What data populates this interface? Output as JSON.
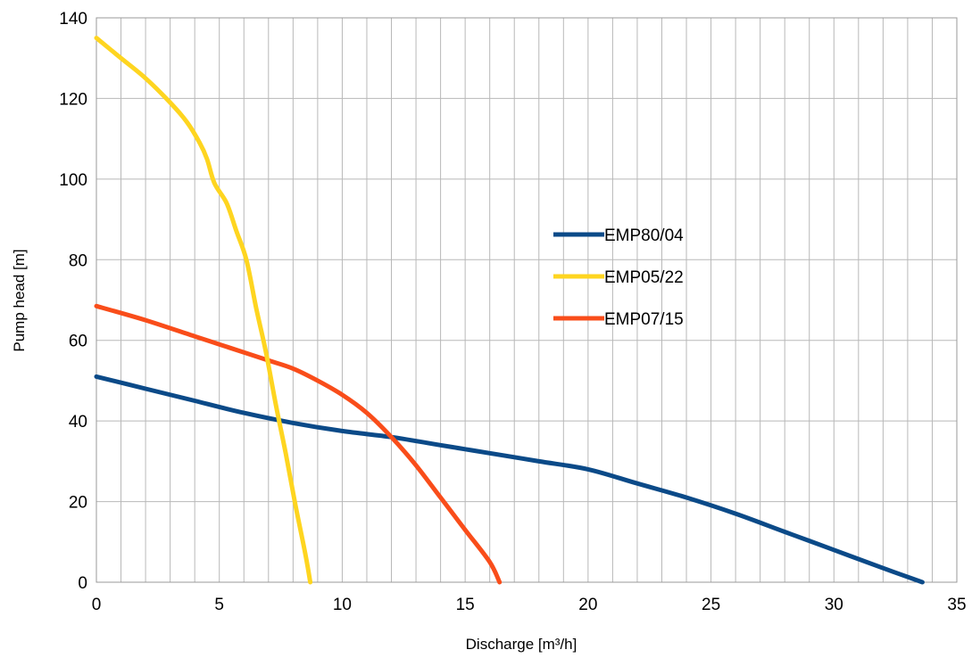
{
  "chart_data": {
    "type": "line",
    "title": "",
    "xlabel": "Discharge [m³/h]",
    "ylabel": "Pump head [m]",
    "xlim": [
      0,
      35
    ],
    "ylim": [
      0,
      140
    ],
    "x_ticks": [
      0,
      5,
      10,
      15,
      20,
      25,
      30,
      35
    ],
    "y_ticks": [
      0,
      20,
      40,
      60,
      80,
      100,
      120,
      140
    ],
    "x_tick_labels": [
      "0",
      "5",
      "10",
      "15",
      "20",
      "25",
      "30",
      "35"
    ],
    "y_tick_labels": [
      "0",
      "20",
      "40",
      "60",
      "80",
      "100",
      "120",
      "140"
    ],
    "x_minor_step": 1,
    "grid": true,
    "legend_position": "right-center",
    "series": [
      {
        "name": "EMP80/04",
        "color": "#0b4a88",
        "points": [
          [
            0,
            51
          ],
          [
            2,
            48
          ],
          [
            4,
            45
          ],
          [
            6,
            42
          ],
          [
            8,
            39.5
          ],
          [
            10,
            37.5
          ],
          [
            12,
            36
          ],
          [
            14,
            34
          ],
          [
            15,
            33
          ],
          [
            16,
            32
          ],
          [
            18,
            30
          ],
          [
            20,
            28
          ],
          [
            22,
            24.5
          ],
          [
            24,
            21
          ],
          [
            26,
            17
          ],
          [
            28,
            12.5
          ],
          [
            30,
            8
          ],
          [
            32,
            3.5
          ],
          [
            33.6,
            0
          ]
        ]
      },
      {
        "name": "EMP05/22",
        "color": "#fed520",
        "points": [
          [
            0,
            135
          ],
          [
            1,
            130
          ],
          [
            2,
            125
          ],
          [
            3,
            119
          ],
          [
            3.7,
            114
          ],
          [
            4.2,
            109
          ],
          [
            4.5,
            105
          ],
          [
            4.8,
            99
          ],
          [
            5.3,
            94
          ],
          [
            5.7,
            87
          ],
          [
            6.1,
            80
          ],
          [
            6.5,
            68
          ],
          [
            6.9,
            57
          ],
          [
            7.3,
            44
          ],
          [
            7.7,
            32
          ],
          [
            8.1,
            19
          ],
          [
            8.5,
            7
          ],
          [
            8.7,
            0
          ]
        ]
      },
      {
        "name": "EMP07/15",
        "color": "#f94d1a",
        "points": [
          [
            0,
            68.5
          ],
          [
            2,
            65
          ],
          [
            4,
            61
          ],
          [
            5,
            59
          ],
          [
            6,
            57
          ],
          [
            7,
            55
          ],
          [
            8,
            53
          ],
          [
            9,
            50
          ],
          [
            10,
            46.5
          ],
          [
            11,
            42
          ],
          [
            12,
            36
          ],
          [
            13,
            29
          ],
          [
            14,
            21
          ],
          [
            15,
            13
          ],
          [
            16,
            5
          ],
          [
            16.4,
            0
          ]
        ]
      }
    ]
  }
}
